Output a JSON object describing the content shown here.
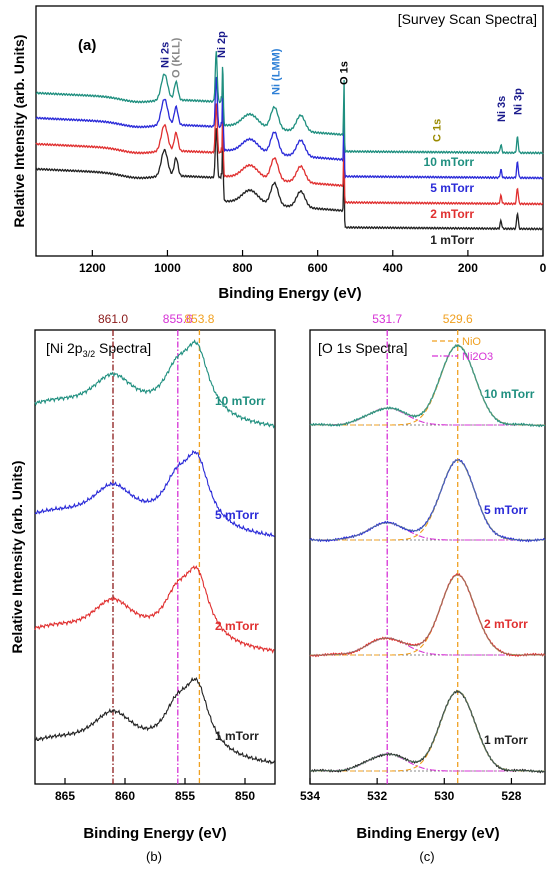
{
  "chart_data": [
    {
      "panel_id": "(a)",
      "type": "line",
      "title": "[Survey Scan Spectra]",
      "xlabel": "Binding Energy (eV)",
      "ylabel": "Relative Intensity (arb. Units)",
      "xlim": [
        1350,
        0
      ],
      "xticks": [
        1200,
        1000,
        800,
        600,
        400,
        200,
        0
      ],
      "x_reversed": true,
      "grid": false,
      "peak_labels": [
        {
          "text": "Ni 2s",
          "x": 1008,
          "color": "#1a1a8c"
        },
        {
          "text": "O (KLL)",
          "x": 978,
          "color": "#888888"
        },
        {
          "text": "Ni 2p",
          "x": 858,
          "color": "#1a1a8c"
        },
        {
          "text": "Ni (LMM)",
          "x": 712,
          "color": "#2d7fd6"
        },
        {
          "text": "O 1s",
          "x": 531,
          "color": "#000000"
        },
        {
          "text": "C 1s",
          "x": 284,
          "color": "#9a8a00"
        },
        {
          "text": "Ni 3s",
          "x": 112,
          "color": "#1a1a8c"
        },
        {
          "text": "Ni 3p",
          "x": 68,
          "color": "#1a1a8c"
        }
      ],
      "series": [
        {
          "name": "1 mTorr",
          "color": "#222222"
        },
        {
          "name": "2 mTorr",
          "color": "#e03030"
        },
        {
          "name": "5 mTorr",
          "color": "#2a2ad8"
        },
        {
          "name": "10 mTorr",
          "color": "#1f8f7f"
        }
      ]
    },
    {
      "panel_id": "(b)",
      "type": "line",
      "title_main": "[Ni 2p",
      "title_sub": "3/2",
      "title_end": " Spectra]",
      "xlabel": "Binding Energy (eV)",
      "ylabel": "Relative Intensity (arb. Units)",
      "xlim": [
        867.5,
        847.5
      ],
      "xticks": [
        865,
        860,
        855,
        850
      ],
      "x_reversed": true,
      "grid": false,
      "reference_lines": [
        {
          "x": 861.0,
          "label": "861.0",
          "color": "#8b1a1a",
          "style": "dashdot"
        },
        {
          "x": 855.6,
          "label": "855.6",
          "color": "#d633d6",
          "style": "dashdot"
        },
        {
          "x": 853.8,
          "label": "853.8",
          "color": "#f0a020",
          "style": "dash"
        }
      ],
      "series": [
        {
          "name": "1 mTorr",
          "color": "#222222"
        },
        {
          "name": "2 mTorr",
          "color": "#e03030"
        },
        {
          "name": "5 mTorr",
          "color": "#2a2ad8"
        },
        {
          "name": "10 mTorr",
          "color": "#1f8f7f"
        }
      ]
    },
    {
      "panel_id": "(c)",
      "type": "line",
      "title": "[O 1s Spectra]",
      "xlabel": "Binding Energy (eV)",
      "xlim": [
        534,
        527
      ],
      "xticks": [
        534,
        532,
        530,
        528
      ],
      "x_reversed": true,
      "grid": false,
      "legend": [
        {
          "name": "NiO",
          "color": "#f0a020",
          "style": "dash"
        },
        {
          "name": "Ni2O3",
          "color": "#d633d6",
          "style": "dashdot"
        }
      ],
      "reference_lines": [
        {
          "x": 531.7,
          "label": "531.7",
          "color": "#d633d6",
          "style": "dashdot"
        },
        {
          "x": 529.6,
          "label": "529.6",
          "color": "#f0a020",
          "style": "dash"
        }
      ],
      "series": [
        {
          "name": "1 mTorr",
          "color": "#222222"
        },
        {
          "name": "2 mTorr",
          "color": "#e03030"
        },
        {
          "name": "5 mTorr",
          "color": "#2a2ad8"
        },
        {
          "name": "10 mTorr",
          "color": "#1f8f7f"
        }
      ]
    }
  ],
  "captions": {
    "b": "(b)",
    "c": "(c)"
  }
}
